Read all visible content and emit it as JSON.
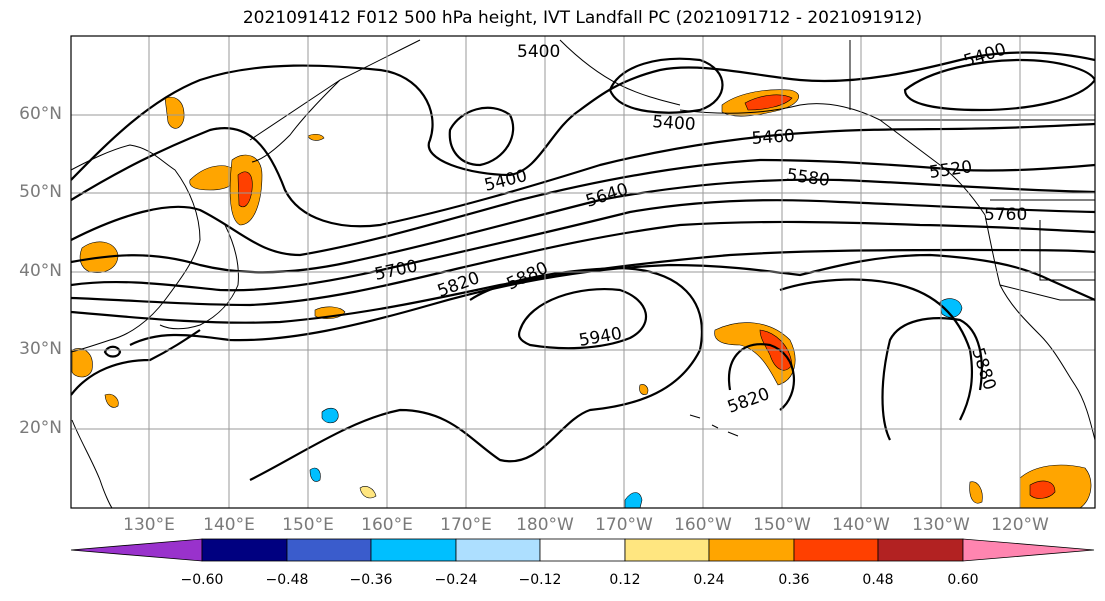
{
  "title": "2021091412 F012 500 hPa height, IVT Landfall PC (2021091712 - 2021091912)",
  "map": {
    "lat_labels": [
      "60°N",
      "50°N",
      "40°N",
      "30°N",
      "20°N"
    ],
    "lon_labels": [
      "130°E",
      "140°E",
      "150°E",
      "160°E",
      "170°E",
      "180°W",
      "170°W",
      "160°W",
      "150°W",
      "140°W",
      "130°W",
      "120°W"
    ],
    "grid": true,
    "contour_color": "#000000",
    "contour_labels": [
      "5400",
      "5400",
      "5400",
      "5400",
      "5460",
      "5520",
      "5580",
      "5640",
      "5700",
      "5760",
      "5820",
      "5820",
      "5880",
      "5880",
      "5940"
    ]
  },
  "colorbar": {
    "ticks": [
      "−0.60",
      "−0.48",
      "−0.36",
      "−0.24",
      "−0.12",
      "0.12",
      "0.24",
      "0.36",
      "0.48",
      "0.60"
    ],
    "under_color": "#9932CC",
    "over_color": "#FF85B0",
    "colors": [
      "#000080",
      "#3A5CCC",
      "#00BFFF",
      "#ADDFFF",
      "#FFFFFF",
      "#FFE680",
      "#FFA500",
      "#FF4000",
      "#B22222"
    ]
  }
}
